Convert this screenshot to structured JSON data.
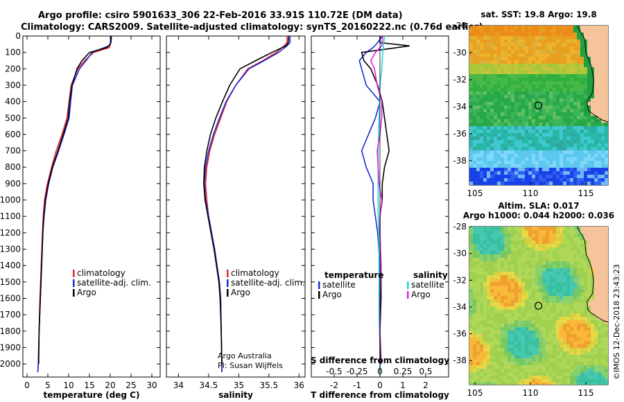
{
  "title": {
    "line1": "Argo profile: csiro 5901633_306 22-Feb-2016 33.91S 110.72E (DM data)",
    "line2": "Climatology: CARS2009. Satellite-adjusted climatology: synTS_20160222.nc (0.76d earlier)"
  },
  "credit": "©IMOS 12-Dec-2018 23:43:23",
  "attribution": {
    "line1": "Argo Australia",
    "line2": "PI: Susan Wijffels"
  },
  "colors": {
    "climatology": "#e8202a",
    "satellite": "#1a2ad0",
    "argo": "#000000",
    "cyan": "#19d8e0",
    "magenta": "#e020e0"
  },
  "chart_data": [
    {
      "type": "line",
      "xlabel": "temperature (deg C)",
      "ylabel": "",
      "xlim": [
        -1,
        32
      ],
      "ylim": [
        2080,
        0
      ],
      "xticks": [
        0,
        5,
        10,
        15,
        20,
        25,
        30
      ],
      "yticks": [
        0,
        100,
        200,
        300,
        400,
        500,
        600,
        700,
        800,
        900,
        1000,
        1100,
        1200,
        1300,
        1400,
        1500,
        1600,
        1700,
        1800,
        1900,
        2000
      ],
      "legend": [
        {
          "label": "climatology",
          "color": "#e8202a"
        },
        {
          "label": "satellite-adj. clim.",
          "color": "#1a2ad0"
        },
        {
          "label": "Argo",
          "color": "#000000"
        }
      ],
      "series": [
        {
          "name": "climatology",
          "color": "#e8202a",
          "points": [
            [
              20.2,
              0
            ],
            [
              20.1,
              40
            ],
            [
              19.8,
              70
            ],
            [
              16,
              100
            ],
            [
              13.8,
              150
            ],
            [
              12.2,
              200
            ],
            [
              10.6,
              300
            ],
            [
              10.1,
              400
            ],
            [
              9.6,
              500
            ],
            [
              8.4,
              600
            ],
            [
              7,
              700
            ],
            [
              5.9,
              800
            ],
            [
              4.9,
              900
            ],
            [
              4.2,
              1000
            ],
            [
              3.9,
              1100
            ],
            [
              3.7,
              1200
            ],
            [
              3.4,
              1400
            ],
            [
              3.1,
              1600
            ],
            [
              2.9,
              1800
            ],
            [
              2.7,
              2000
            ],
            [
              2.6,
              2050
            ]
          ]
        },
        {
          "name": "satellite-adj. clim.",
          "color": "#1a2ad0",
          "points": [
            [
              20.3,
              0
            ],
            [
              20.2,
              40
            ],
            [
              19.6,
              60
            ],
            [
              15.6,
              100
            ],
            [
              14.2,
              150
            ],
            [
              12.6,
              200
            ],
            [
              10.9,
              300
            ],
            [
              10.5,
              400
            ],
            [
              10.1,
              500
            ],
            [
              8.9,
              600
            ],
            [
              7.6,
              700
            ],
            [
              6.2,
              800
            ],
            [
              5.2,
              900
            ],
            [
              4.5,
              1000
            ],
            [
              4.1,
              1100
            ],
            [
              3.8,
              1200
            ],
            [
              3.5,
              1400
            ],
            [
              3.2,
              1600
            ],
            [
              2.9,
              1800
            ],
            [
              2.7,
              2000
            ],
            [
              2.6,
              2050
            ]
          ]
        },
        {
          "name": "Argo",
          "color": "#000000",
          "points": [
            [
              20.2,
              0
            ],
            [
              20,
              50
            ],
            [
              19.2,
              70
            ],
            [
              15,
              100
            ],
            [
              13.2,
              150
            ],
            [
              12,
              200
            ],
            [
              10.8,
              300
            ],
            [
              10.2,
              400
            ],
            [
              9.9,
              500
            ],
            [
              8.7,
              600
            ],
            [
              7.4,
              700
            ],
            [
              6.1,
              800
            ],
            [
              5.1,
              900
            ],
            [
              4.4,
              1000
            ],
            [
              4,
              1100
            ],
            [
              3.8,
              1200
            ],
            [
              3.5,
              1400
            ],
            [
              3.2,
              1600
            ],
            [
              2.9,
              1800
            ],
            [
              2.8,
              2000
            ]
          ]
        }
      ]
    },
    {
      "type": "line",
      "xlabel": "salinity",
      "ylabel": "",
      "xlim": [
        33.8,
        36.1
      ],
      "ylim": [
        2080,
        0
      ],
      "xticks": [
        34,
        34.5,
        35,
        35.5,
        36
      ],
      "xticklabels": [
        "34",
        "34.5",
        "35",
        "35.5",
        "36"
      ],
      "legend": [
        {
          "label": "climatology",
          "color": "#e8202a"
        },
        {
          "label": "satellite-adj. clim.",
          "color": "#1a2ad0"
        },
        {
          "label": "Argo",
          "color": "#000000"
        }
      ],
      "series": [
        {
          "name": "climatology",
          "color": "#e8202a",
          "points": [
            [
              35.8,
              0
            ],
            [
              35.8,
              40
            ],
            [
              35.75,
              60
            ],
            [
              35.62,
              100
            ],
            [
              35.4,
              150
            ],
            [
              35.15,
              200
            ],
            [
              34.95,
              300
            ],
            [
              34.8,
              400
            ],
            [
              34.7,
              500
            ],
            [
              34.6,
              600
            ],
            [
              34.52,
              700
            ],
            [
              34.47,
              800
            ],
            [
              34.45,
              900
            ],
            [
              34.47,
              1000
            ],
            [
              34.5,
              1100
            ],
            [
              34.55,
              1200
            ],
            [
              34.6,
              1300
            ],
            [
              34.64,
              1400
            ],
            [
              34.68,
              1500
            ],
            [
              34.7,
              1600
            ],
            [
              34.71,
              1800
            ],
            [
              34.72,
              2000
            ],
            [
              34.72,
              2050
            ]
          ]
        },
        {
          "name": "satellite-adj. clim.",
          "color": "#1a2ad0",
          "points": [
            [
              35.85,
              0
            ],
            [
              35.85,
              40
            ],
            [
              35.8,
              60
            ],
            [
              35.66,
              100
            ],
            [
              35.42,
              150
            ],
            [
              35.17,
              200
            ],
            [
              34.95,
              300
            ],
            [
              34.79,
              400
            ],
            [
              34.68,
              500
            ],
            [
              34.58,
              600
            ],
            [
              34.5,
              700
            ],
            [
              34.45,
              800
            ],
            [
              34.43,
              900
            ],
            [
              34.45,
              1000
            ],
            [
              34.5,
              1100
            ],
            [
              34.55,
              1200
            ],
            [
              34.6,
              1300
            ],
            [
              34.64,
              1400
            ],
            [
              34.68,
              1500
            ],
            [
              34.7,
              1600
            ],
            [
              34.71,
              1800
            ],
            [
              34.72,
              2000
            ],
            [
              34.72,
              2050
            ]
          ]
        },
        {
          "name": "Argo",
          "color": "#000000",
          "points": [
            [
              35.83,
              0
            ],
            [
              35.82,
              40
            ],
            [
              35.78,
              60
            ],
            [
              35.55,
              100
            ],
            [
              35.28,
              150
            ],
            [
              35.02,
              200
            ],
            [
              34.85,
              300
            ],
            [
              34.73,
              400
            ],
            [
              34.62,
              500
            ],
            [
              34.53,
              600
            ],
            [
              34.47,
              700
            ],
            [
              34.43,
              800
            ],
            [
              34.42,
              900
            ],
            [
              34.44,
              1000
            ],
            [
              34.49,
              1100
            ],
            [
              34.54,
              1200
            ],
            [
              34.59,
              1300
            ],
            [
              34.63,
              1400
            ],
            [
              34.67,
              1500
            ],
            [
              34.69,
              1600
            ],
            [
              34.71,
              1800
            ],
            [
              34.72,
              2000
            ]
          ]
        }
      ]
    },
    {
      "type": "line",
      "xlabel": "T difference from climatology",
      "xlabel2": "S difference from climatology",
      "xlim": [
        -3,
        3
      ],
      "ylim": [
        2080,
        0
      ],
      "xticks": [
        -2,
        -1,
        0,
        1,
        2
      ],
      "xticks_top": [
        -0.5,
        -0.25,
        0,
        0.25,
        0.5
      ],
      "xticklabels_top": [
        "-0.5",
        "-0.25",
        "0",
        "0.25",
        "0.5"
      ],
      "legend_left_title": "temperature",
      "legend_right_title": "salinity",
      "legend": [
        {
          "label": "satellite",
          "color": "#1a2ad0",
          "side": "left"
        },
        {
          "label": "Argo",
          "color": "#000000",
          "side": "left"
        },
        {
          "label": "satellite",
          "color": "#19d8e0",
          "side": "right"
        },
        {
          "label": "Argo",
          "color": "#e020e0",
          "side": "right"
        }
      ],
      "series": [
        {
          "name": "T satellite",
          "color": "#1a2ad0",
          "points": [
            [
              0.1,
              0
            ],
            [
              -0.1,
              40
            ],
            [
              -0.3,
              70
            ],
            [
              -0.6,
              100
            ],
            [
              -0.9,
              150
            ],
            [
              -0.8,
              200
            ],
            [
              -0.6,
              300
            ],
            [
              0,
              400
            ],
            [
              -0.2,
              500
            ],
            [
              -0.5,
              600
            ],
            [
              -0.8,
              700
            ],
            [
              -0.6,
              800
            ],
            [
              -0.3,
              900
            ],
            [
              -0.3,
              1000
            ],
            [
              -0.2,
              1100
            ],
            [
              -0.1,
              1200
            ],
            [
              0,
              1400
            ],
            [
              0,
              1600
            ],
            [
              0,
              1800
            ],
            [
              0,
              2000
            ],
            [
              0,
              2050
            ]
          ]
        },
        {
          "name": "T Argo",
          "color": "#000000",
          "points": [
            [
              0,
              0
            ],
            [
              0,
              40
            ],
            [
              1.3,
              60
            ],
            [
              -0.8,
              100
            ],
            [
              -0.7,
              150
            ],
            [
              -0.4,
              200
            ],
            [
              -0.1,
              300
            ],
            [
              0.1,
              400
            ],
            [
              0.2,
              500
            ],
            [
              0.3,
              600
            ],
            [
              0.4,
              700
            ],
            [
              0.2,
              800
            ],
            [
              0.1,
              900
            ],
            [
              0.1,
              1000
            ],
            [
              0,
              1100
            ],
            [
              0,
              1200
            ],
            [
              0.05,
              1400
            ],
            [
              0.05,
              1600
            ],
            [
              0,
              1800
            ],
            [
              0.05,
              2000
            ]
          ]
        },
        {
          "name": "S satellite",
          "color": "#19d8e0",
          "points": [
            [
              0.05,
              0
            ],
            [
              0.03,
              100
            ],
            [
              0.02,
              200
            ],
            [
              0,
              300
            ],
            [
              -0.01,
              500
            ],
            [
              -0.02,
              700
            ],
            [
              -0.02,
              900
            ],
            [
              -0.02,
              1100
            ],
            [
              -0.01,
              1300
            ],
            [
              -0.01,
              1500
            ],
            [
              -0.01,
              1700
            ],
            [
              0,
              1900
            ],
            [
              0,
              2050
            ]
          ]
        },
        {
          "name": "S Argo",
          "color": "#e020e0",
          "points": [
            [
              0.03,
              0
            ],
            [
              0.02,
              60
            ],
            [
              -0.05,
              100
            ],
            [
              -0.1,
              150
            ],
            [
              -0.06,
              200
            ],
            [
              -0.03,
              300
            ],
            [
              0.02,
              400
            ],
            [
              0.02,
              500
            ],
            [
              0,
              600
            ],
            [
              -0.03,
              700
            ],
            [
              -0.02,
              800
            ],
            [
              -0.01,
              900
            ],
            [
              0.02,
              1000
            ],
            [
              0,
              1100
            ],
            [
              0,
              1200
            ],
            [
              0.01,
              1400
            ],
            [
              0,
              1600
            ],
            [
              0,
              1800
            ],
            [
              0,
              2000
            ]
          ]
        }
      ]
    },
    {
      "type": "heatmap",
      "title": "sat. SST: 19.8 Argo: 19.8",
      "xticks": [
        105,
        110,
        115
      ],
      "yticks": [
        -28,
        -30,
        -32,
        -34,
        -36,
        -38
      ],
      "xlim": [
        104.5,
        117
      ],
      "ylim": [
        -39.8,
        -28
      ],
      "marker": [
        110.72,
        -33.91
      ]
    },
    {
      "type": "heatmap",
      "title_line1": "Altim. SLA: 0.017",
      "title_line2": "Argo h1000: 0.044 h2000: 0.036",
      "xticks": [
        105,
        110,
        115
      ],
      "yticks": [
        -28,
        -30,
        -32,
        -34,
        -36,
        -38
      ],
      "xlim": [
        104.5,
        117
      ],
      "ylim": [
        -39.8,
        -28
      ],
      "marker": [
        110.72,
        -33.91
      ]
    }
  ]
}
